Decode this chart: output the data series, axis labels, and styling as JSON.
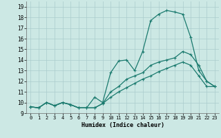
{
  "xlabel": "Humidex (Indice chaleur)",
  "bg_color": "#cce8e4",
  "grid_color": "#aacccc",
  "line_color": "#1a7a6e",
  "xlim": [
    -0.5,
    23.5
  ],
  "ylim": [
    9,
    19.5
  ],
  "xticks": [
    0,
    1,
    2,
    3,
    4,
    5,
    6,
    7,
    8,
    9,
    10,
    11,
    12,
    13,
    14,
    15,
    16,
    17,
    18,
    19,
    20,
    21,
    22,
    23
  ],
  "yticks": [
    9,
    10,
    11,
    12,
    13,
    14,
    15,
    16,
    17,
    18,
    19
  ],
  "curve1_x": [
    0,
    1,
    2,
    3,
    4,
    5,
    6,
    7,
    8,
    9,
    10,
    11,
    12,
    13,
    14,
    15,
    16,
    17,
    18,
    19,
    20,
    21,
    22,
    23
  ],
  "curve1_y": [
    9.6,
    9.5,
    10.0,
    9.7,
    10.0,
    9.8,
    9.5,
    9.5,
    10.5,
    10.0,
    12.8,
    13.9,
    14.0,
    13.0,
    14.8,
    17.7,
    18.3,
    18.65,
    18.5,
    18.3,
    16.1,
    13.0,
    12.0,
    11.5
  ],
  "curve2_x": [
    0,
    1,
    2,
    3,
    4,
    5,
    6,
    7,
    8,
    9,
    10,
    11,
    12,
    13,
    14,
    15,
    16,
    17,
    18,
    19,
    20,
    21,
    22,
    23
  ],
  "curve2_y": [
    9.6,
    9.5,
    10.0,
    9.7,
    10.0,
    9.8,
    9.5,
    9.5,
    9.5,
    9.9,
    11.0,
    11.5,
    12.2,
    12.5,
    12.8,
    13.5,
    13.8,
    14.0,
    14.2,
    14.8,
    14.5,
    13.5,
    12.0,
    11.5
  ],
  "curve3_x": [
    0,
    1,
    2,
    3,
    4,
    5,
    6,
    7,
    8,
    9,
    10,
    11,
    12,
    13,
    14,
    15,
    16,
    17,
    18,
    19,
    20,
    21,
    22,
    23
  ],
  "curve3_y": [
    9.6,
    9.5,
    10.0,
    9.7,
    10.0,
    9.8,
    9.5,
    9.5,
    9.5,
    9.9,
    10.5,
    11.0,
    11.4,
    11.8,
    12.2,
    12.5,
    12.9,
    13.2,
    13.5,
    13.8,
    13.5,
    12.5,
    11.5,
    11.5
  ]
}
